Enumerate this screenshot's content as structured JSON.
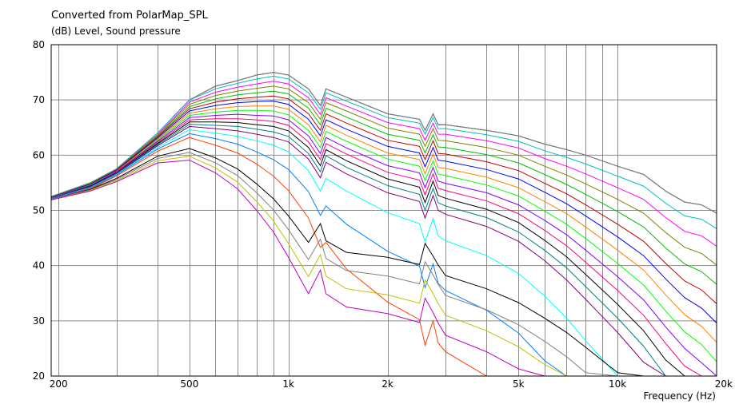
{
  "chart_data": {
    "type": "line",
    "title": "Converted from PolarMap_SPL",
    "ylabel": "(dB)  Level, Sound pressure",
    "xlabel": "Frequency  (Hz)",
    "xscale": "log",
    "xlim": [
      190,
      20000
    ],
    "ylim": [
      20,
      80
    ],
    "grid": true,
    "yticks": [
      20,
      30,
      40,
      50,
      60,
      70,
      80
    ],
    "xticks": [
      {
        "value": 200,
        "label": "200"
      },
      {
        "value": 500,
        "label": "500"
      },
      {
        "value": 1000,
        "label": "1k"
      },
      {
        "value": 2000,
        "label": "2k"
      },
      {
        "value": 5000,
        "label": "5k"
      },
      {
        "value": 10000,
        "label": "10k"
      },
      {
        "value": 20000,
        "label": "20k"
      }
    ],
    "x": [
      190,
      250,
      300,
      400,
      500,
      600,
      700,
      800,
      900,
      1000,
      1150,
      1250,
      1300,
      1500,
      2000,
      2500,
      2600,
      2750,
      2850,
      3000,
      4000,
      5000,
      6000,
      7000,
      8000,
      10000,
      12000,
      14000,
      16000,
      18000,
      20000
    ],
    "series": [
      {
        "color": "#000000",
        "values": [
          52.5,
          55,
          57.5,
          64,
          70,
          72.5,
          73.5,
          74.5,
          75,
          74.5,
          72,
          69,
          72,
          70.5,
          67.5,
          66.5,
          64.5,
          67.5,
          65.5,
          65.5,
          64.5,
          63.5,
          62,
          61,
          60,
          58,
          56.5,
          53.5,
          51.5,
          51,
          49.5
        ]
      },
      {
        "color": "#808080",
        "values": [
          52.5,
          55,
          57.5,
          64,
          70,
          72.5,
          73.5,
          74.5,
          75,
          74.5,
          72,
          69,
          72,
          70.5,
          67.5,
          66.5,
          64.5,
          67.5,
          65.5,
          65.5,
          64.5,
          63.5,
          62,
          61,
          60,
          58,
          56.5,
          53.5,
          51.5,
          51,
          49.5
        ]
      },
      {
        "color": "#00c0c0",
        "values": [
          52.5,
          55,
          57.5,
          64,
          70,
          72,
          73,
          73.8,
          74.3,
          73.8,
          71.3,
          68.3,
          71.3,
          69.8,
          66.8,
          65.8,
          63.8,
          66.8,
          64.8,
          64.8,
          63.7,
          62.5,
          60.8,
          59.6,
          58.4,
          56.2,
          54.4,
          51.3,
          49,
          48.4,
          46.7
        ]
      },
      {
        "color": "#ff00ff",
        "values": [
          52.4,
          54.9,
          57.4,
          63.7,
          69.6,
          71.4,
          72.3,
          72.9,
          73.4,
          72.9,
          70.4,
          67.4,
          70.4,
          68.9,
          65.9,
          64.8,
          62.7,
          65.8,
          63.8,
          63.8,
          62.6,
          61.3,
          59.4,
          58,
          56.6,
          54.1,
          52,
          48.7,
          46.2,
          45.4,
          43.5
        ]
      },
      {
        "color": "#808000",
        "values": [
          52.4,
          54.9,
          57.4,
          63.6,
          69.2,
          70.8,
          71.6,
          72.1,
          72.5,
          72,
          69.5,
          66.5,
          69.5,
          68,
          64.9,
          63.8,
          61.6,
          64.8,
          62.7,
          62.6,
          61.4,
          60,
          58,
          56.4,
          54.8,
          52,
          49.5,
          46,
          43.3,
          42.2,
          40.1
        ]
      },
      {
        "color": "#00c000",
        "values": [
          52.4,
          54.8,
          57.3,
          63.4,
          68.8,
          70.2,
          70.9,
          71.3,
          71.6,
          71.1,
          68.5,
          65.5,
          68.5,
          66.9,
          63.8,
          62.7,
          60.4,
          63.7,
          61.5,
          61.4,
          60.1,
          58.6,
          56.5,
          54.7,
          52.9,
          49.8,
          47,
          43.2,
          40.3,
          38.9,
          36.6
        ]
      },
      {
        "color": "#c00000",
        "values": [
          52.4,
          54.8,
          57.3,
          63.3,
          68.4,
          69.6,
          70.2,
          70.5,
          70.7,
          70.2,
          67.5,
          64.5,
          67.5,
          65.8,
          62.7,
          61.6,
          59.2,
          62.6,
          60.3,
          60.2,
          58.8,
          57.2,
          54.9,
          53,
          51,
          47.5,
          44.4,
          40.4,
          37.2,
          35.6,
          33.1
        ]
      },
      {
        "color": "#0000ff",
        "values": [
          52.3,
          54.7,
          57.2,
          63.1,
          68,
          69,
          69.5,
          69.7,
          69.8,
          69.2,
          66.5,
          63.5,
          66.4,
          64.7,
          61.6,
          60.4,
          57.9,
          61.4,
          59.1,
          58.9,
          57.4,
          55.7,
          53.3,
          51.2,
          49,
          45.2,
          41.8,
          37.6,
          34.2,
          32.3,
          29.6
        ]
      },
      {
        "color": "#ff8000",
        "values": [
          52.3,
          54.6,
          57.1,
          62.9,
          67.6,
          68.4,
          68.8,
          68.9,
          68.9,
          68.3,
          65.5,
          62.4,
          65.4,
          63.6,
          60.4,
          59.2,
          56.6,
          60.2,
          57.8,
          57.6,
          56,
          54.1,
          51.6,
          49.4,
          47,
          42.8,
          39.2,
          34.7,
          31.1,
          29,
          26.1
        ]
      },
      {
        "color": "#00ff00",
        "values": [
          52.3,
          54.6,
          57,
          62.7,
          67.2,
          67.8,
          68.1,
          68.1,
          68,
          67.3,
          64.5,
          61.4,
          64.3,
          62.5,
          59.3,
          58,
          55.4,
          59,
          56.6,
          56.3,
          54.6,
          52.6,
          49.9,
          47.5,
          44.9,
          40.4,
          36.5,
          31.8,
          28,
          25.7,
          22.6
        ]
      },
      {
        "color": "#8000ff",
        "values": [
          52.3,
          54.5,
          57,
          62.5,
          66.8,
          67.2,
          67.4,
          67.2,
          67.1,
          66.4,
          63.5,
          60.3,
          63.2,
          61.3,
          58.1,
          56.8,
          54.1,
          57.8,
          55.3,
          54.9,
          53.2,
          51,
          48.2,
          45.6,
          42.8,
          38,
          33.8,
          28.9,
          25,
          22.4,
          20
        ]
      },
      {
        "color": "#ff0080",
        "values": [
          52.2,
          54.4,
          56.9,
          62.3,
          66.4,
          66.6,
          66.6,
          66.4,
          66.1,
          65.4,
          62.4,
          59.2,
          62.1,
          60.2,
          56.9,
          55.5,
          52.8,
          56.6,
          54,
          53.6,
          51.7,
          49.4,
          46.4,
          43.6,
          40.6,
          35.5,
          31,
          25.9,
          21.8,
          20,
          20
        ]
      },
      {
        "color": "#000000",
        "values": [
          52.2,
          54.4,
          56.8,
          62.1,
          66,
          66,
          65.9,
          65.5,
          65.2,
          64.4,
          61.4,
          58.1,
          61,
          59,
          55.7,
          54.2,
          51.4,
          55.3,
          52.7,
          52.2,
          50.2,
          47.8,
          44.6,
          41.6,
          38.4,
          33,
          28.2,
          22.9,
          20,
          20,
          20
        ]
      },
      {
        "color": "#008080",
        "values": [
          52.2,
          54.3,
          56.7,
          61.9,
          65.6,
          65.4,
          65.2,
          64.7,
          64.2,
          63.4,
          60.3,
          57,
          59.9,
          57.8,
          54.5,
          52.9,
          50,
          54,
          51.4,
          50.8,
          48.7,
          46.1,
          42.8,
          39.6,
          36.2,
          30.5,
          25.4,
          20,
          20,
          20,
          20
        ]
      },
      {
        "color": "#800080",
        "values": [
          52.1,
          54.2,
          56.6,
          61.7,
          65.2,
          64.8,
          64.4,
          63.8,
          63.2,
          62.4,
          59.3,
          55.9,
          58.7,
          56.6,
          53.2,
          51.6,
          48.6,
          52.7,
          50,
          49.3,
          47.1,
          44.4,
          40.9,
          37.4,
          33.9,
          27.9,
          22.5,
          20,
          20,
          20,
          20
        ]
      },
      {
        "color": "#00ffff",
        "values": [
          52.1,
          54.1,
          56.5,
          61.4,
          64.6,
          64,
          63.4,
          62.6,
          61.8,
          60.6,
          57.2,
          53.5,
          55.8,
          53.5,
          49.6,
          47.6,
          44.3,
          48.5,
          45.4,
          44.5,
          41.8,
          38.6,
          34.5,
          30.5,
          26.4,
          20,
          20,
          20,
          20,
          20,
          20
        ]
      },
      {
        "color": "#0080ff",
        "values": [
          52.1,
          54,
          56.4,
          61.1,
          63.9,
          63,
          62,
          60.6,
          59.2,
          57.4,
          53.4,
          49.1,
          50.8,
          47.5,
          42.6,
          39.9,
          36,
          40.3,
          36.8,
          35.5,
          31.9,
          27.8,
          22.8,
          20,
          20,
          20,
          20,
          20,
          20,
          20,
          20
        ]
      },
      {
        "color": "#ff4000",
        "values": [
          52,
          53.9,
          56.2,
          60.7,
          63.2,
          61.8,
          60.4,
          58.4,
          56.2,
          53.6,
          48.6,
          43.3,
          44.2,
          39.4,
          33.4,
          30.2,
          25.6,
          30,
          26,
          24.4,
          20,
          20,
          20,
          20,
          20,
          20,
          20,
          20,
          20,
          20,
          20
        ]
      },
      {
        "color": "#000000",
        "values": [
          52,
          53.8,
          55.8,
          59.8,
          61.2,
          59.5,
          57.5,
          54.8,
          52.1,
          49,
          44.2,
          47.6,
          44.5,
          42.4,
          41.5,
          40.2,
          44,
          41.7,
          40.1,
          38.2,
          35.8,
          33.3,
          30.5,
          27.9,
          25.2,
          20.6,
          20,
          20,
          20,
          20,
          20
        ]
      },
      {
        "color": "#808080",
        "values": [
          52,
          53.7,
          55.6,
          59.4,
          60.5,
          58.6,
          56.3,
          53.2,
          50.1,
          46.5,
          41.1,
          44.8,
          41.3,
          39.1,
          38.1,
          36.7,
          40.7,
          38.3,
          36.6,
          34.6,
          32,
          29.3,
          26.3,
          23.5,
          20.6,
          20,
          20,
          20,
          20,
          20,
          20
        ]
      },
      {
        "color": "#c0c000",
        "values": [
          51.9,
          53.6,
          55.4,
          59,
          59.8,
          57.7,
          55.1,
          51.6,
          48.1,
          44,
          38,
          42,
          38.1,
          35.8,
          34.7,
          33.2,
          37.4,
          34.9,
          33.1,
          31,
          28.2,
          25.3,
          22.1,
          20,
          20,
          20,
          20,
          20,
          20,
          20,
          20
        ]
      },
      {
        "color": "#c000c0",
        "values": [
          51.9,
          53.5,
          55.2,
          58.6,
          59.1,
          56.8,
          53.9,
          50,
          46.1,
          41.5,
          34.9,
          39.2,
          34.9,
          32.5,
          31.3,
          29.7,
          34.1,
          31.5,
          29.6,
          27.4,
          24.4,
          21.3,
          20,
          20,
          20,
          20,
          20,
          20,
          20,
          20,
          20
        ]
      }
    ]
  }
}
